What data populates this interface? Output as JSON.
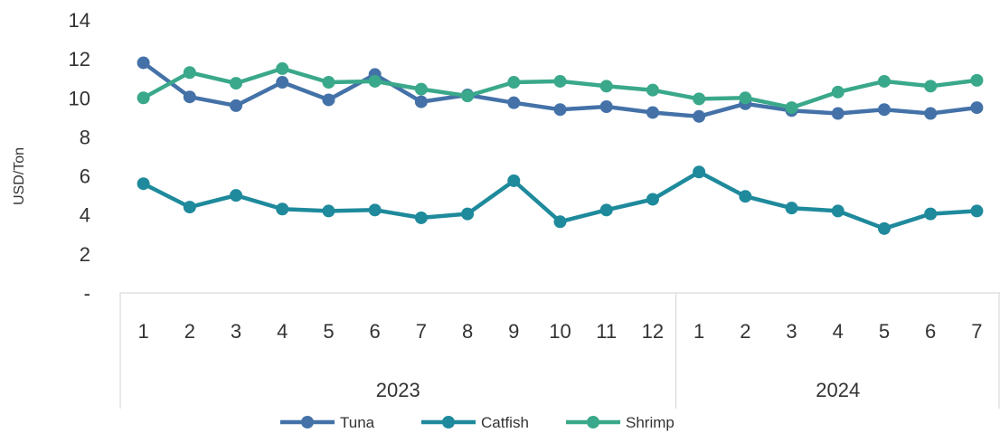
{
  "chart_data": {
    "type": "line",
    "ylabel": "USD/Ton",
    "ylim": [
      0,
      14
    ],
    "yticks": [
      0,
      2,
      4,
      6,
      8,
      10,
      12,
      14
    ],
    "ytick_labels": [
      "-",
      "2",
      "4",
      "6",
      "8",
      "10",
      "12",
      "14"
    ],
    "x": [
      "1",
      "2",
      "3",
      "4",
      "5",
      "6",
      "7",
      "8",
      "9",
      "10",
      "11",
      "12",
      "1",
      "2",
      "3",
      "4",
      "5",
      "6",
      "7"
    ],
    "year_groups": [
      {
        "label": "2023",
        "count": 12
      },
      {
        "label": "2024",
        "count": 7
      }
    ],
    "grid": false,
    "legend_position": "bottom",
    "series": [
      {
        "name": "Tuna",
        "color": "#4472a8",
        "values": [
          11.8,
          10.05,
          9.6,
          10.8,
          9.9,
          11.2,
          9.8,
          10.15,
          9.75,
          9.4,
          9.55,
          9.25,
          9.05,
          9.7,
          9.35,
          9.2,
          9.4,
          9.2,
          9.5
        ]
      },
      {
        "name": "Catfish",
        "color": "#1e8a9c",
        "values": [
          5.6,
          4.4,
          5.0,
          4.3,
          4.2,
          4.25,
          3.85,
          4.05,
          5.75,
          3.65,
          4.25,
          4.8,
          6.2,
          4.95,
          4.35,
          4.2,
          3.3,
          4.05,
          4.2
        ]
      },
      {
        "name": "Shrimp",
        "color": "#3aa88a",
        "values": [
          10.0,
          11.3,
          10.75,
          11.5,
          10.8,
          10.85,
          10.45,
          10.1,
          10.8,
          10.85,
          10.6,
          10.4,
          9.95,
          10.0,
          9.5,
          10.3,
          10.85,
          10.6,
          10.9
        ]
      }
    ]
  }
}
